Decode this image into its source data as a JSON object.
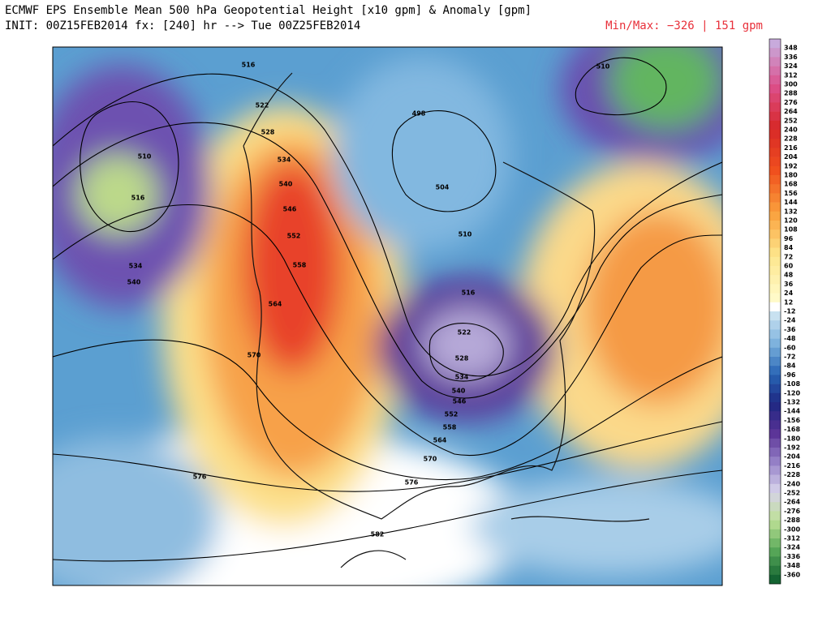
{
  "header": {
    "title": "ECMWF EPS Ensemble Mean 500 hPa Geopotential Height [x10 gpm] & Anomaly [gpm]",
    "init": "INIT: 00Z15FEB2014 fx: [240] hr --> Tue 00Z25FEB2014",
    "minmax": "Min/Max:  −326 |  151 gpm"
  },
  "colorbar": {
    "labels": [
      348,
      336,
      324,
      312,
      300,
      288,
      276,
      264,
      252,
      240,
      228,
      216,
      204,
      192,
      180,
      168,
      156,
      144,
      132,
      120,
      108,
      96,
      84,
      72,
      60,
      48,
      36,
      24,
      12,
      -12,
      -24,
      -36,
      -48,
      -60,
      -72,
      -84,
      -96,
      -108,
      -120,
      -132,
      -144,
      -156,
      -168,
      -180,
      -192,
      -204,
      -216,
      -228,
      -240,
      -252,
      -264,
      -276,
      -288,
      -300,
      -312,
      -324,
      -336,
      -348,
      -360
    ]
  },
  "contours": [
    516,
    522,
    528,
    534,
    540,
    546,
    552,
    558,
    564,
    570,
    576,
    576,
    582,
    510,
    516,
    534,
    540,
    498,
    504,
    510,
    516,
    522,
    528,
    534,
    540,
    546,
    552,
    558,
    564,
    570,
    510
  ]
}
